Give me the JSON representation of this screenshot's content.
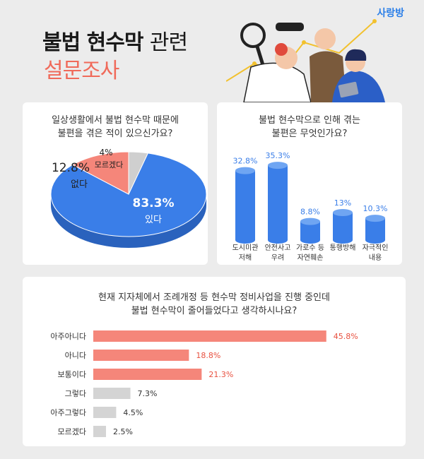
{
  "brand": "사랑방",
  "title": {
    "line1_bold": "불법 현수막",
    "line1_light": "관련",
    "line2": "설문조사"
  },
  "colors": {
    "blue": "#3a7ee8",
    "coral": "#f5867a",
    "gray": "#cfcfcf",
    "grayLabel": "#d4d4d4"
  },
  "chart_data": [
    {
      "type": "pie",
      "title": [
        "일상생활에서 불법 현수막 때문에",
        "불편을 겪은 적이 있으신가요?"
      ],
      "slices": [
        {
          "label": "있다",
          "value": 83.3,
          "display": "83.3%"
        },
        {
          "label": "없다",
          "value": 12.8,
          "display": "12.8%"
        },
        {
          "label": "모르겠다",
          "value": 4,
          "display": "4%"
        }
      ]
    },
    {
      "type": "bar",
      "title": [
        "불법 현수막으로 인해 겪는",
        "불편은 무엇인가요?"
      ],
      "categories": [
        [
          "도시미관",
          "저해"
        ],
        [
          "안전사고",
          "우려"
        ],
        [
          "가로수 등",
          "자연훼손"
        ],
        [
          "통행방해"
        ],
        [
          "자극적인",
          "내용"
        ]
      ],
      "values": [
        32.8,
        35.3,
        8.8,
        13,
        10.3
      ],
      "labels": [
        "32.8%",
        "35.3%",
        "8.8%",
        "13%",
        "10.3%"
      ],
      "ylim": [
        0,
        40
      ]
    },
    {
      "type": "bar",
      "orientation": "horizontal",
      "title": [
        "현재 지자체에서 조례개정 등 현수막 정비사업을 진행 중인데",
        "불법 현수막이 줄어들었다고 생각하시나요?"
      ],
      "categories": [
        "아주아니다",
        "아니다",
        "보통이다",
        "그렇다",
        "아주그렇다",
        "모르겠다"
      ],
      "values": [
        45.8,
        18.8,
        21.3,
        7.3,
        4.5,
        2.5
      ],
      "labels": [
        "45.8%",
        "18.8%",
        "21.3%",
        "7.3%",
        "4.5%",
        "2.5%"
      ],
      "highlight": [
        true,
        true,
        true,
        false,
        false,
        false
      ],
      "xlim": [
        0,
        50
      ]
    }
  ]
}
